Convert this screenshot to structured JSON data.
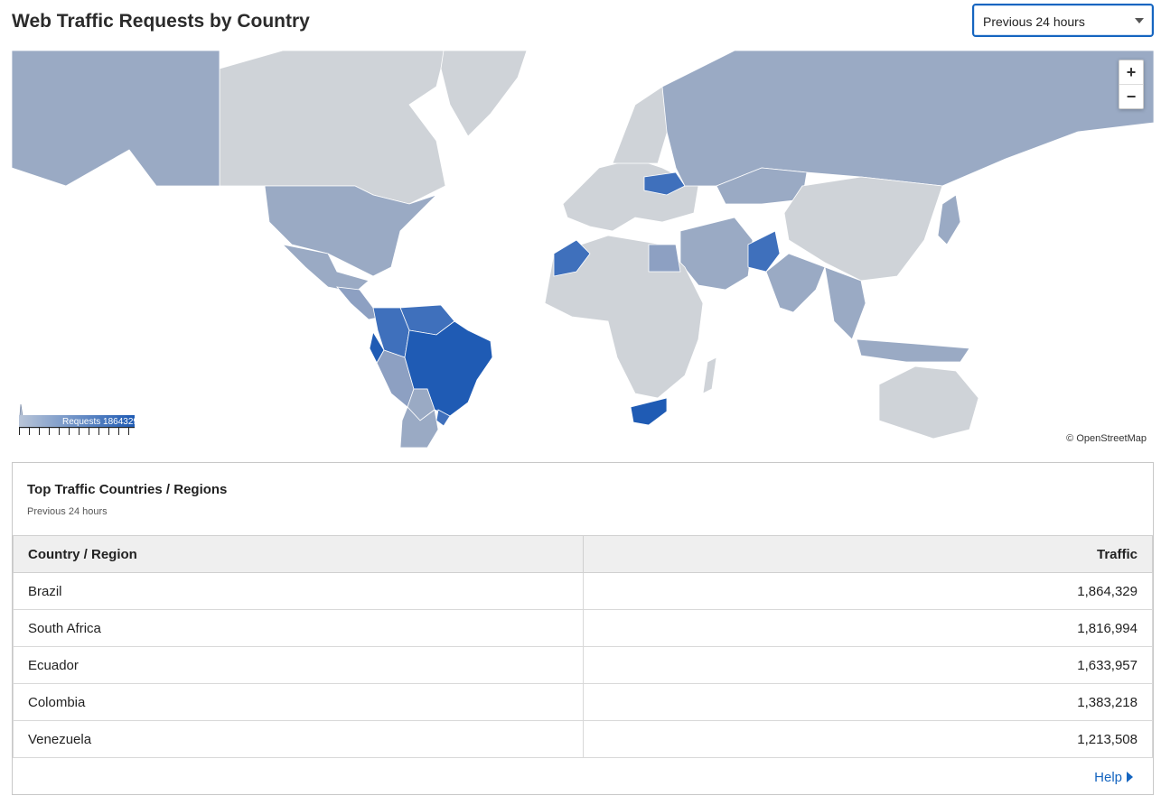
{
  "page": {
    "title": "Web Traffic Requests by Country"
  },
  "range_selector": {
    "selected": "Previous 24 hours"
  },
  "map": {
    "zoom_in": "+",
    "zoom_out": "−",
    "attribution": "© OpenStreetMap",
    "legend_label": "Requests 1864329",
    "colors": {
      "max": "#1f5bb4",
      "high": "#3f70bc",
      "mid": "#8da0c2",
      "low": "#9aaac4",
      "none": "#cfd3d8",
      "ocean": "#ffffff"
    }
  },
  "panel": {
    "title": "Top Traffic Countries / Regions",
    "subtitle": "Previous 24 hours",
    "columns": [
      "Country / Region",
      "Traffic"
    ],
    "rows": [
      {
        "country": "Brazil",
        "traffic": "1,864,329"
      },
      {
        "country": "South Africa",
        "traffic": "1,816,994"
      },
      {
        "country": "Ecuador",
        "traffic": "1,633,957"
      },
      {
        "country": "Colombia",
        "traffic": "1,383,218"
      },
      {
        "country": "Venezuela",
        "traffic": "1,213,508"
      }
    ],
    "help_label": "Help"
  }
}
